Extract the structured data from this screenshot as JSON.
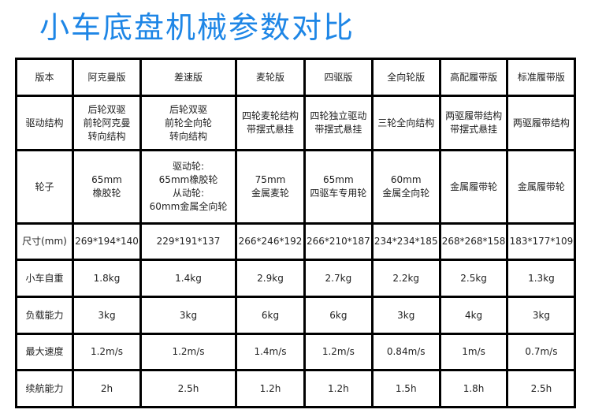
{
  "title": "小车底盘机械参数对比",
  "colors": {
    "title": "#1e86e6"
  },
  "rows": [
    [
      "版本",
      "阿克曼版",
      "差速版",
      "麦轮版",
      "四驱版",
      "全向轮版",
      "高配履带版",
      "标准履带版"
    ],
    [
      "驱动结构",
      "后轮双驱\n前轮阿克曼\n转向结构",
      "后轮双驱\n前轮全向轮\n转向结构",
      "四轮麦轮结构\n带摆式悬挂",
      "四轮独立驱动\n带摆式悬挂",
      "三轮全向结构",
      "两驱履带结构\n带摆式悬挂",
      "两驱履带结构"
    ],
    [
      "轮子",
      "65mm\n橡胶轮",
      "驱动轮:\n65mm橡胶轮\n从动轮:\n60mm金属全向轮",
      "75mm\n金属麦轮",
      "65mm\n四驱车专用轮",
      "60mm\n金属全向轮",
      "金属履带轮",
      "金属履带轮"
    ],
    [
      "尺寸(mm)",
      "269*194*140",
      "229*191*137",
      "266*246*192",
      "266*210*187",
      "234*234*185",
      "268*268*158",
      "183*177*109"
    ],
    [
      "小车自重",
      "1.8kg",
      "1.4kg",
      "2.9kg",
      "2.7kg",
      "2.2kg",
      "2.5kg",
      "1.3kg"
    ],
    [
      "负载能力",
      "3kg",
      "3kg",
      "6kg",
      "6kg",
      "3kg",
      "4kg",
      "3kg"
    ],
    [
      "最大速度",
      "1.2m/s",
      "1.2m/s",
      "1.4m/s",
      "1.2m/s",
      "0.84m/s",
      "1m/s",
      "0.7m/s"
    ],
    [
      "续航能力",
      "2h",
      "2.5h",
      "1.2h",
      "1.2h",
      "1.5h",
      "1.8h",
      "2.5h"
    ]
  ]
}
